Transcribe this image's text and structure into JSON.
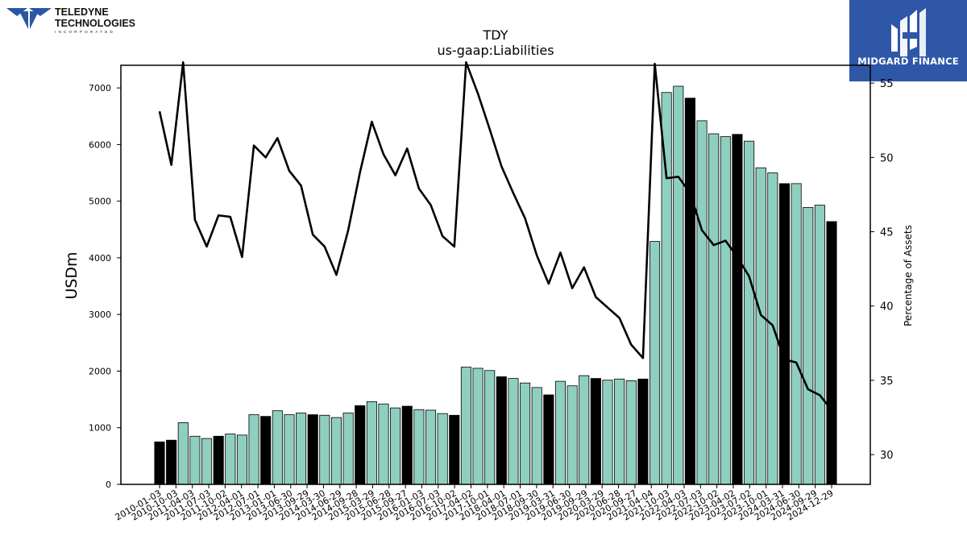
{
  "logos": {
    "left": {
      "line1": "TELEDYNE",
      "line2": "TECHNOLOGIES",
      "line3": "INCORPORATED",
      "color": "#2a56a6"
    },
    "right": {
      "brand": "MIDGARD FINANCE",
      "background": "#2f57a8"
    }
  },
  "chart_data": {
    "type": "bar",
    "title": "TDY",
    "subtitle": "us-gaap:Liabilities",
    "ylabel": "USDm",
    "y2label": "Percentage of Assets",
    "ylim": [
      0,
      7400
    ],
    "y2lim": [
      28,
      56.2
    ],
    "yticks": [
      0,
      1000,
      2000,
      3000,
      4000,
      5000,
      6000,
      7000
    ],
    "y2ticks": [
      30,
      35,
      40,
      45,
      50,
      55
    ],
    "colors": {
      "bar_teal": "#8ecfc0",
      "bar_black": "#000000",
      "line": "#000000"
    },
    "x_tick_labels": [
      "2010-01-03",
      "2010-10-03",
      "2011-04-03",
      "2011-07-03",
      "2011-10-02",
      "2012-04-01",
      "2012-07-01",
      "2013-01-01",
      "2013-06-30",
      "2013-09-29",
      "2014-03-30",
      "2014-06-29",
      "2014-09-28",
      "2015-03-29",
      "2015-06-28",
      "2015-09-27",
      "2016-01-03",
      "2016-07-03",
      "2016-10-02",
      "2017-04-02",
      "2017-10-01",
      "2018-04-01",
      "2018-07-01",
      "2018-09-30",
      "2019-03-31",
      "2019-06-30",
      "2019-09-29",
      "2020-03-29",
      "2020-06-28",
      "2020-09-27",
      "2021-04-04",
      "2021-10-03",
      "2022-04-03",
      "2022-07-03",
      "2022-10-02",
      "2023-04-02",
      "2023-07-02",
      "2023-10-01",
      "2024-03-31",
      "2024-06-30",
      "2024-09-29",
      "2024-12-29"
    ],
    "bars": [
      {
        "v": 750,
        "k": 1
      },
      {
        "v": 780,
        "k": 1
      },
      {
        "v": 1090,
        "k": 0
      },
      {
        "v": 850,
        "k": 0
      },
      {
        "v": 810,
        "k": 0
      },
      {
        "v": 850,
        "k": 1
      },
      {
        "v": 890,
        "k": 0
      },
      {
        "v": 870,
        "k": 0
      },
      {
        "v": 1230,
        "k": 0
      },
      {
        "v": 1200,
        "k": 1
      },
      {
        "v": 1300,
        "k": 0
      },
      {
        "v": 1230,
        "k": 0
      },
      {
        "v": 1260,
        "k": 0
      },
      {
        "v": 1230,
        "k": 1
      },
      {
        "v": 1220,
        "k": 0
      },
      {
        "v": 1180,
        "k": 0
      },
      {
        "v": 1260,
        "k": 0
      },
      {
        "v": 1390,
        "k": 1
      },
      {
        "v": 1460,
        "k": 0
      },
      {
        "v": 1420,
        "k": 0
      },
      {
        "v": 1350,
        "k": 0
      },
      {
        "v": 1380,
        "k": 1
      },
      {
        "v": 1320,
        "k": 0
      },
      {
        "v": 1310,
        "k": 0
      },
      {
        "v": 1250,
        "k": 0
      },
      {
        "v": 1220,
        "k": 1
      },
      {
        "v": 2070,
        "k": 0
      },
      {
        "v": 2050,
        "k": 0
      },
      {
        "v": 2010,
        "k": 0
      },
      {
        "v": 1900,
        "k": 1
      },
      {
        "v": 1870,
        "k": 0
      },
      {
        "v": 1790,
        "k": 0
      },
      {
        "v": 1710,
        "k": 0
      },
      {
        "v": 1580,
        "k": 1
      },
      {
        "v": 1820,
        "k": 0
      },
      {
        "v": 1740,
        "k": 0
      },
      {
        "v": 1920,
        "k": 0
      },
      {
        "v": 1870,
        "k": 1
      },
      {
        "v": 1840,
        "k": 0
      },
      {
        "v": 1860,
        "k": 0
      },
      {
        "v": 1830,
        "k": 0
      },
      {
        "v": 1860,
        "k": 1
      },
      {
        "v": 4290,
        "k": 0
      },
      {
        "v": 6920,
        "k": 0
      },
      {
        "v": 7030,
        "k": 0
      },
      {
        "v": 6820,
        "k": 1
      },
      {
        "v": 6420,
        "k": 0
      },
      {
        "v": 6190,
        "k": 0
      },
      {
        "v": 6140,
        "k": 0
      },
      {
        "v": 6180,
        "k": 1
      },
      {
        "v": 6060,
        "k": 0
      },
      {
        "v": 5590,
        "k": 0
      },
      {
        "v": 5500,
        "k": 0
      },
      {
        "v": 5310,
        "k": 1
      },
      {
        "v": 5310,
        "k": 0
      },
      {
        "v": 4890,
        "k": 0
      },
      {
        "v": 4930,
        "k": 0
      },
      {
        "v": 4640,
        "k": 1
      }
    ],
    "line_pct": [
      53.1,
      49.5,
      56.4,
      45.8,
      44.0,
      46.1,
      46.0,
      43.3,
      50.8,
      50.0,
      51.3,
      49.1,
      48.1,
      44.8,
      44.0,
      42.1,
      45.1,
      49.0,
      52.4,
      50.2,
      48.8,
      50.6,
      47.9,
      46.8,
      44.7,
      44.0,
      56.4,
      54.3,
      51.9,
      49.4,
      47.6,
      45.9,
      43.4,
      41.5,
      43.6,
      41.2,
      42.6,
      40.6,
      39.9,
      39.2,
      37.4,
      36.5,
      56.3,
      48.6,
      48.7,
      47.6,
      45.1,
      44.1,
      44.4,
      43.3,
      42.0,
      39.4,
      38.7,
      36.4,
      36.2,
      34.4,
      34.0,
      33.0
    ]
  }
}
